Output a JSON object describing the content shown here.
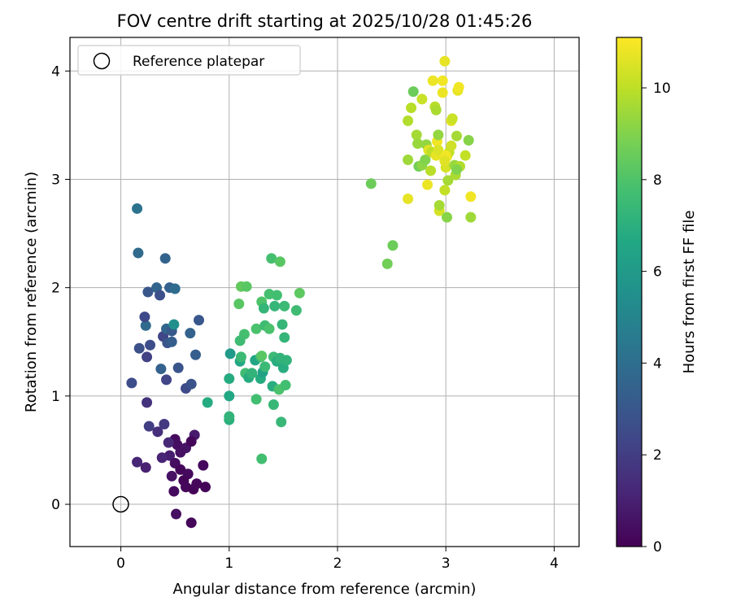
{
  "chart_data": {
    "type": "scatter",
    "title": "FOV centre drift starting at 2025/10/28 01:45:26",
    "xlabel": "Angular distance from reference (arcmin)",
    "ylabel": "Rotation from reference (arcmin)",
    "colorbar_label": "Hours from first FF file",
    "xlim": [
      -0.47,
      4.23
    ],
    "ylim": [
      -0.39,
      4.31
    ],
    "x_ticks": [
      0,
      1,
      2,
      3,
      4
    ],
    "y_ticks": [
      0,
      1,
      2,
      3,
      4
    ],
    "colorbar_range": [
      0,
      11.1
    ],
    "colorbar_ticks": [
      0,
      2,
      4,
      6,
      8,
      10
    ],
    "grid": true,
    "colormap": "viridis",
    "legend": {
      "position": "top-left",
      "entries": [
        "Reference platepar"
      ]
    },
    "reference": {
      "x": 0,
      "y": 0
    },
    "points": [
      {
        "x": 0.5,
        "y": 0.6,
        "h": 0.3
      },
      {
        "x": 0.52,
        "y": 0.55,
        "h": 0.4
      },
      {
        "x": 0.6,
        "y": 0.52,
        "h": 0.6
      },
      {
        "x": 0.68,
        "y": 0.64,
        "h": 0.8
      },
      {
        "x": 0.65,
        "y": 0.58,
        "h": 0.2
      },
      {
        "x": 0.55,
        "y": 0.48,
        "h": 0.5
      },
      {
        "x": 0.45,
        "y": 0.45,
        "h": 0.9
      },
      {
        "x": 0.38,
        "y": 0.43,
        "h": 1.1
      },
      {
        "x": 0.44,
        "y": 0.57,
        "h": 1.3
      },
      {
        "x": 0.5,
        "y": 0.38,
        "h": 0.4
      },
      {
        "x": 0.55,
        "y": 0.32,
        "h": 0.2
      },
      {
        "x": 0.62,
        "y": 0.28,
        "h": 0.3
      },
      {
        "x": 0.47,
        "y": 0.26,
        "h": 0.5
      },
      {
        "x": 0.58,
        "y": 0.22,
        "h": 0.1
      },
      {
        "x": 0.6,
        "y": 0.16,
        "h": 0.2
      },
      {
        "x": 0.67,
        "y": 0.14,
        "h": 0.1
      },
      {
        "x": 0.7,
        "y": 0.19,
        "h": 0.2
      },
      {
        "x": 0.78,
        "y": 0.16,
        "h": 0.1
      },
      {
        "x": 0.76,
        "y": 0.36,
        "h": 0.3
      },
      {
        "x": 0.49,
        "y": 0.12,
        "h": 0.3
      },
      {
        "x": 0.51,
        "y": -0.09,
        "h": 0.4
      },
      {
        "x": 0.65,
        "y": -0.17,
        "h": 0.2
      },
      {
        "x": 0.15,
        "y": 0.39,
        "h": 1.2
      },
      {
        "x": 0.23,
        "y": 0.34,
        "h": 1.0
      },
      {
        "x": 0.34,
        "y": 0.67,
        "h": 1.5
      },
      {
        "x": 0.4,
        "y": 0.74,
        "h": 1.8
      },
      {
        "x": 0.26,
        "y": 0.72,
        "h": 2.0
      },
      {
        "x": 0.24,
        "y": 0.94,
        "h": 1.6
      },
      {
        "x": 0.1,
        "y": 1.12,
        "h": 2.6
      },
      {
        "x": 0.42,
        "y": 1.15,
        "h": 2.3
      },
      {
        "x": 0.37,
        "y": 1.25,
        "h": 3.4
      },
      {
        "x": 0.53,
        "y": 1.26,
        "h": 2.9
      },
      {
        "x": 0.6,
        "y": 1.07,
        "h": 2.5
      },
      {
        "x": 0.65,
        "y": 1.11,
        "h": 2.8
      },
      {
        "x": 0.17,
        "y": 1.44,
        "h": 2.7
      },
      {
        "x": 0.24,
        "y": 1.36,
        "h": 2.1
      },
      {
        "x": 0.27,
        "y": 1.47,
        "h": 2.6
      },
      {
        "x": 0.39,
        "y": 1.55,
        "h": 2.3
      },
      {
        "x": 0.43,
        "y": 1.49,
        "h": 2.9
      },
      {
        "x": 0.47,
        "y": 1.5,
        "h": 3.3
      },
      {
        "x": 0.42,
        "y": 1.62,
        "h": 3.6
      },
      {
        "x": 0.47,
        "y": 1.6,
        "h": 3.1
      },
      {
        "x": 0.49,
        "y": 1.66,
        "h": 5.5
      },
      {
        "x": 0.64,
        "y": 1.58,
        "h": 3.5
      },
      {
        "x": 0.69,
        "y": 1.38,
        "h": 3.3
      },
      {
        "x": 0.72,
        "y": 1.7,
        "h": 3.0
      },
      {
        "x": 0.23,
        "y": 1.65,
        "h": 3.8
      },
      {
        "x": 0.22,
        "y": 1.73,
        "h": 2.4
      },
      {
        "x": 0.25,
        "y": 1.96,
        "h": 3.0
      },
      {
        "x": 0.33,
        "y": 2.0,
        "h": 3.6
      },
      {
        "x": 0.36,
        "y": 1.93,
        "h": 2.7
      },
      {
        "x": 0.45,
        "y": 2.0,
        "h": 3.4
      },
      {
        "x": 0.5,
        "y": 1.99,
        "h": 3.9
      },
      {
        "x": 0.41,
        "y": 2.27,
        "h": 3.5
      },
      {
        "x": 0.16,
        "y": 2.32,
        "h": 3.8
      },
      {
        "x": 0.15,
        "y": 2.73,
        "h": 4.2
      },
      {
        "x": 0.8,
        "y": 0.94,
        "h": 6.8
      },
      {
        "x": 1.0,
        "y": 0.78,
        "h": 7.0
      },
      {
        "x": 1.0,
        "y": 0.81,
        "h": 7.2
      },
      {
        "x": 1.0,
        "y": 1.0,
        "h": 6.6
      },
      {
        "x": 1.0,
        "y": 1.16,
        "h": 6.8
      },
      {
        "x": 1.01,
        "y": 1.39,
        "h": 6.0
      },
      {
        "x": 1.1,
        "y": 1.32,
        "h": 6.6
      },
      {
        "x": 1.11,
        "y": 1.36,
        "h": 7.5
      },
      {
        "x": 1.1,
        "y": 1.51,
        "h": 7.6
      },
      {
        "x": 1.14,
        "y": 1.57,
        "h": 7.8
      },
      {
        "x": 1.09,
        "y": 1.85,
        "h": 8.2
      },
      {
        "x": 1.11,
        "y": 2.01,
        "h": 8.4
      },
      {
        "x": 1.16,
        "y": 2.01,
        "h": 8.2
      },
      {
        "x": 1.15,
        "y": 1.21,
        "h": 7.6
      },
      {
        "x": 1.18,
        "y": 1.17,
        "h": 6.8
      },
      {
        "x": 1.21,
        "y": 1.21,
        "h": 7.2
      },
      {
        "x": 1.24,
        "y": 1.33,
        "h": 6.5
      },
      {
        "x": 1.25,
        "y": 0.97,
        "h": 7.7
      },
      {
        "x": 1.25,
        "y": 1.62,
        "h": 7.9
      },
      {
        "x": 1.29,
        "y": 1.16,
        "h": 6.8
      },
      {
        "x": 1.29,
        "y": 1.36,
        "h": 7.4
      },
      {
        "x": 1.3,
        "y": 1.37,
        "h": 8.2
      },
      {
        "x": 1.31,
        "y": 1.22,
        "h": 6.3
      },
      {
        "x": 1.33,
        "y": 1.27,
        "h": 7.5
      },
      {
        "x": 1.33,
        "y": 1.65,
        "h": 7.6
      },
      {
        "x": 1.3,
        "y": 1.87,
        "h": 8.0
      },
      {
        "x": 1.32,
        "y": 1.81,
        "h": 7.3
      },
      {
        "x": 1.37,
        "y": 1.94,
        "h": 7.8
      },
      {
        "x": 1.37,
        "y": 1.62,
        "h": 7.9
      },
      {
        "x": 1.42,
        "y": 1.83,
        "h": 7.3
      },
      {
        "x": 1.44,
        "y": 1.93,
        "h": 7.7
      },
      {
        "x": 1.39,
        "y": 2.27,
        "h": 7.8
      },
      {
        "x": 1.47,
        "y": 2.24,
        "h": 8.2
      },
      {
        "x": 1.41,
        "y": 1.36,
        "h": 7.5
      },
      {
        "x": 1.44,
        "y": 1.32,
        "h": 6.9
      },
      {
        "x": 1.47,
        "y": 1.35,
        "h": 7.2
      },
      {
        "x": 1.5,
        "y": 1.26,
        "h": 6.9
      },
      {
        "x": 1.53,
        "y": 1.33,
        "h": 7.2
      },
      {
        "x": 1.4,
        "y": 1.09,
        "h": 6.9
      },
      {
        "x": 1.46,
        "y": 1.06,
        "h": 7.9
      },
      {
        "x": 1.52,
        "y": 1.1,
        "h": 7.7
      },
      {
        "x": 1.41,
        "y": 0.92,
        "h": 7.4
      },
      {
        "x": 1.48,
        "y": 0.76,
        "h": 7.4
      },
      {
        "x": 1.3,
        "y": 0.42,
        "h": 7.7
      },
      {
        "x": 1.49,
        "y": 1.66,
        "h": 7.3
      },
      {
        "x": 1.51,
        "y": 1.54,
        "h": 7.3
      },
      {
        "x": 1.51,
        "y": 1.83,
        "h": 7.5
      },
      {
        "x": 1.62,
        "y": 1.79,
        "h": 7.6
      },
      {
        "x": 1.65,
        "y": 1.95,
        "h": 8.3
      },
      {
        "x": 2.31,
        "y": 2.96,
        "h": 8.6
      },
      {
        "x": 2.46,
        "y": 2.22,
        "h": 8.7
      },
      {
        "x": 2.51,
        "y": 2.39,
        "h": 8.6
      },
      {
        "x": 2.65,
        "y": 3.18,
        "h": 9.5
      },
      {
        "x": 2.65,
        "y": 3.54,
        "h": 9.8
      },
      {
        "x": 2.68,
        "y": 3.66,
        "h": 9.9
      },
      {
        "x": 2.7,
        "y": 3.81,
        "h": 8.6
      },
      {
        "x": 2.73,
        "y": 3.41,
        "h": 9.6
      },
      {
        "x": 2.74,
        "y": 3.33,
        "h": 9.4
      },
      {
        "x": 2.75,
        "y": 3.12,
        "h": 8.7
      },
      {
        "x": 2.78,
        "y": 3.13,
        "h": 9.2
      },
      {
        "x": 2.78,
        "y": 3.74,
        "h": 10.2
      },
      {
        "x": 2.81,
        "y": 3.18,
        "h": 9.0
      },
      {
        "x": 2.82,
        "y": 3.32,
        "h": 9.3
      },
      {
        "x": 2.84,
        "y": 3.27,
        "h": 10.6
      },
      {
        "x": 2.86,
        "y": 3.08,
        "h": 9.9
      },
      {
        "x": 2.87,
        "y": 3.25,
        "h": 10.0
      },
      {
        "x": 2.88,
        "y": 3.91,
        "h": 10.8
      },
      {
        "x": 2.9,
        "y": 3.67,
        "h": 9.9
      },
      {
        "x": 2.91,
        "y": 3.64,
        "h": 9.7
      },
      {
        "x": 2.91,
        "y": 3.22,
        "h": 10.7
      },
      {
        "x": 2.92,
        "y": 3.35,
        "h": 10.9
      },
      {
        "x": 2.93,
        "y": 3.27,
        "h": 10.5
      },
      {
        "x": 2.93,
        "y": 3.41,
        "h": 9.3
      },
      {
        "x": 2.94,
        "y": 2.71,
        "h": 10.4
      },
      {
        "x": 2.94,
        "y": 2.76,
        "h": 9.6
      },
      {
        "x": 2.97,
        "y": 3.8,
        "h": 10.8
      },
      {
        "x": 2.97,
        "y": 3.91,
        "h": 10.9
      },
      {
        "x": 2.99,
        "y": 4.09,
        "h": 10.7
      },
      {
        "x": 2.99,
        "y": 2.9,
        "h": 10.1
      },
      {
        "x": 3.0,
        "y": 3.11,
        "h": 10.4
      },
      {
        "x": 3.01,
        "y": 3.21,
        "h": 10.8
      },
      {
        "x": 3.01,
        "y": 2.65,
        "h": 9.1
      },
      {
        "x": 3.02,
        "y": 2.99,
        "h": 9.6
      },
      {
        "x": 3.03,
        "y": 3.25,
        "h": 10.1
      },
      {
        "x": 3.05,
        "y": 3.31,
        "h": 10.3
      },
      {
        "x": 3.05,
        "y": 3.54,
        "h": 10.6
      },
      {
        "x": 3.06,
        "y": 3.56,
        "h": 10.2
      },
      {
        "x": 3.08,
        "y": 3.13,
        "h": 9.4
      },
      {
        "x": 3.09,
        "y": 3.04,
        "h": 9.7
      },
      {
        "x": 3.1,
        "y": 3.4,
        "h": 9.6
      },
      {
        "x": 3.11,
        "y": 3.82,
        "h": 10.7
      },
      {
        "x": 3.12,
        "y": 3.85,
        "h": 10.9
      },
      {
        "x": 3.13,
        "y": 3.12,
        "h": 9.8
      },
      {
        "x": 3.18,
        "y": 3.22,
        "h": 10.1
      },
      {
        "x": 3.21,
        "y": 3.36,
        "h": 9.1
      },
      {
        "x": 3.23,
        "y": 2.65,
        "h": 9.5
      },
      {
        "x": 3.23,
        "y": 2.84,
        "h": 10.9
      },
      {
        "x": 3.0,
        "y": 3.22,
        "h": 10.9
      },
      {
        "x": 2.99,
        "y": 3.17,
        "h": 10.6
      },
      {
        "x": 3.1,
        "y": 3.09,
        "h": 9.0
      },
      {
        "x": 2.65,
        "y": 2.82,
        "h": 10.7
      },
      {
        "x": 2.83,
        "y": 2.95,
        "h": 10.8
      }
    ]
  }
}
